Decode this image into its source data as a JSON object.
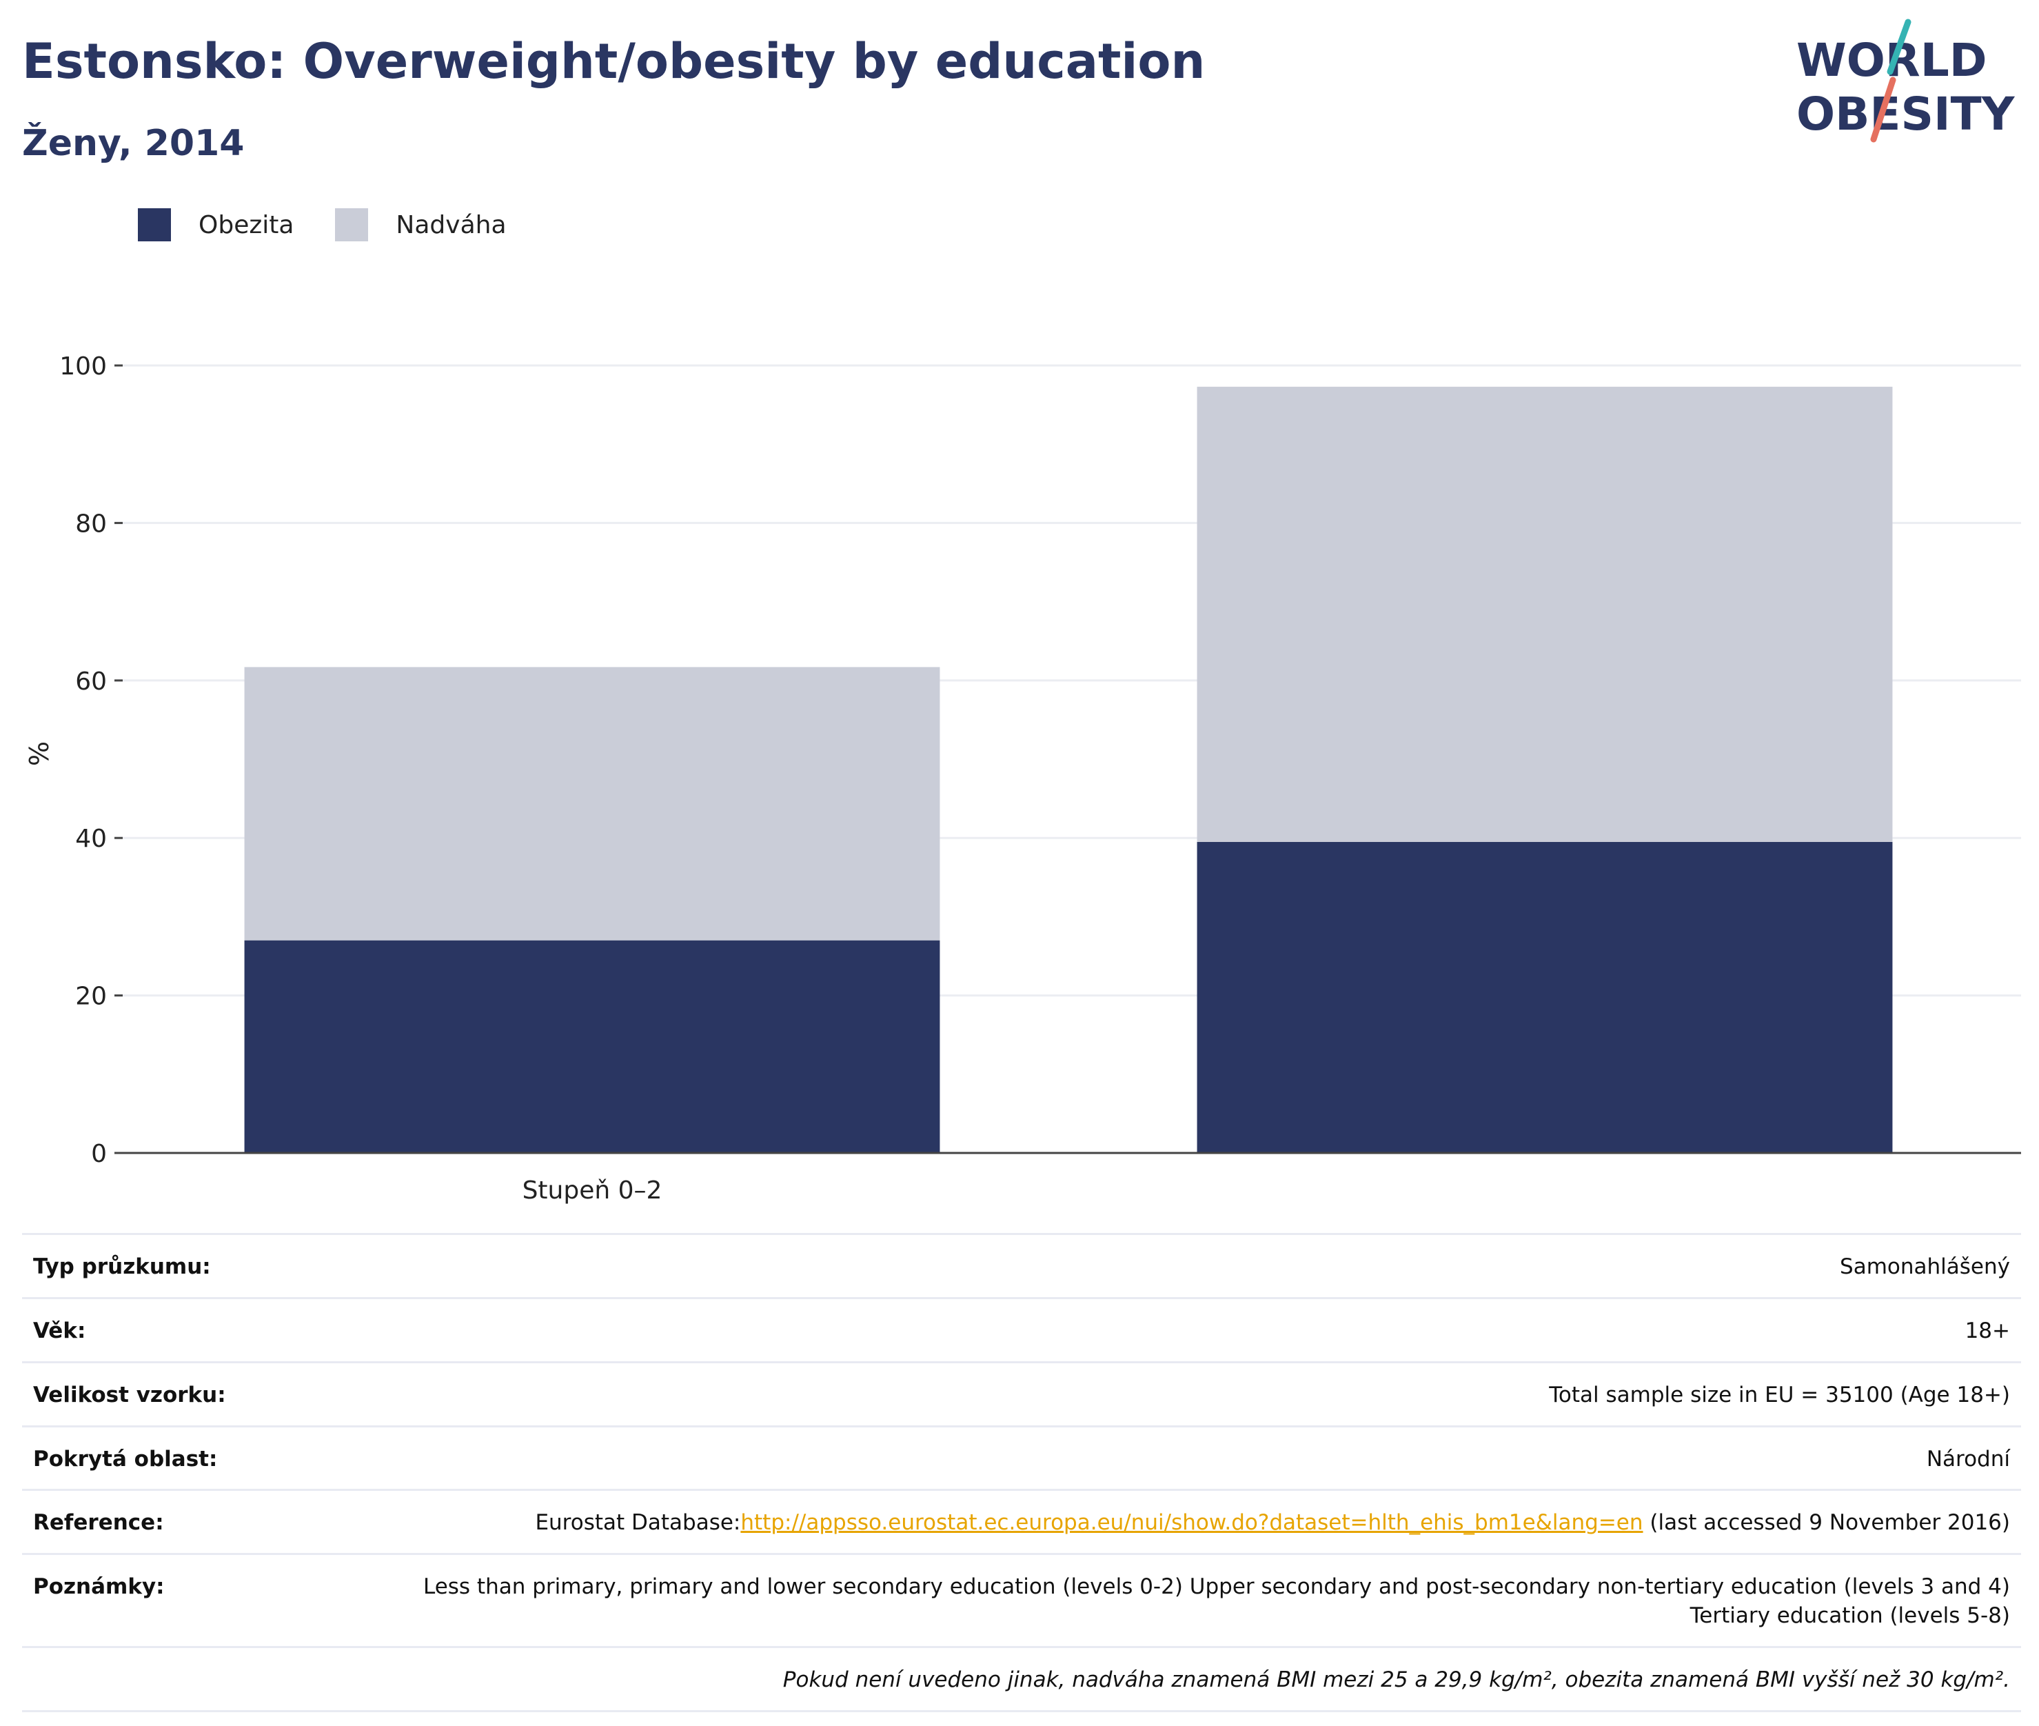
{
  "header": {
    "title": "Estonsko: Overweight/obesity by education",
    "subtitle": "Ženy, 2014"
  },
  "logo": {
    "line1": "WORLD",
    "line2": "OBESITY",
    "colors": {
      "text": "#2a3662",
      "slash_teal": "#35b3b3",
      "slash_coral": "#e5705f"
    }
  },
  "legend": {
    "items": [
      {
        "label": "Obezita",
        "color": "#2a3662"
      },
      {
        "label": "Nadváha",
        "color": "#cacdd8"
      }
    ]
  },
  "chart_data": {
    "type": "bar",
    "stacked": true,
    "categories": [
      "Stupeň 0–2",
      ""
    ],
    "series": [
      {
        "name": "Obezita",
        "color": "#2a3662",
        "values": [
          27,
          39.5
        ]
      },
      {
        "name": "Nadváha",
        "color": "#cacdd8",
        "values": [
          34.7,
          57.8
        ]
      }
    ],
    "ylabel": "%",
    "ylim": [
      0,
      100
    ],
    "yticks": [
      0,
      20,
      40,
      60,
      80,
      100
    ],
    "grid": true,
    "legend_position": "top-left"
  },
  "info": {
    "survey_type": {
      "label": "Typ průzkumu:",
      "value": "Samonahlášený"
    },
    "age": {
      "label": "Věk:",
      "value": "18+"
    },
    "sample_size": {
      "label": "Velikost vzorku:",
      "value": "Total sample size in EU = 35100 (Age 18+)"
    },
    "area": {
      "label": "Pokrytá oblast:",
      "value": "Národní"
    },
    "reference": {
      "label": "Reference:",
      "prefix": "Eurostat Database:",
      "link": "http://appsso.eurostat.ec.europa.eu/nui/show.do?dataset=hlth_ehis_bm1e&lang=en",
      "suffix": " (last accessed 9 November 2016)"
    },
    "notes": {
      "label": "Poznámky:",
      "value": "Less than primary, primary and lower secondary education (levels 0-2) Upper secondary and post-secondary non-tertiary education (levels 3 and 4) Tertiary education (levels 5-8)"
    },
    "footnote": "Pokud není uvedeno jinak, nadváha znamená BMI mezi 25 a 29,9 kg/m², obezita znamená BMI vyšší než 30 kg/m²."
  }
}
